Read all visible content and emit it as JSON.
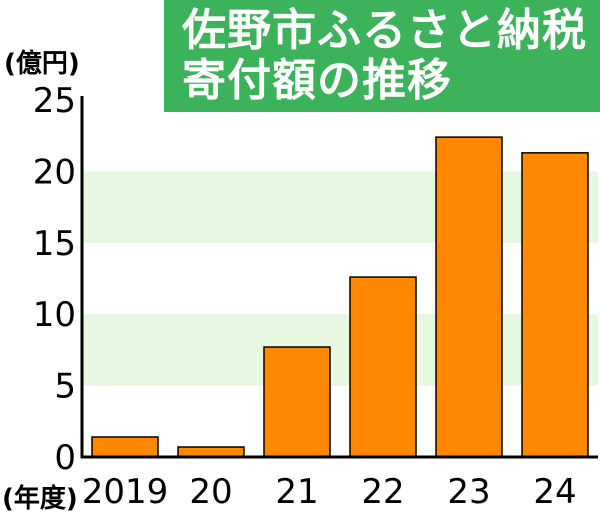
{
  "chart_data": {
    "type": "bar",
    "title_lines": [
      "佐野市ふるさと納税",
      "寄付額の推移"
    ],
    "ylabel": "(億円)",
    "xlabel": "(年度)",
    "categories": [
      "2019",
      "20",
      "21",
      "22",
      "23",
      "24"
    ],
    "values": [
      1.4,
      0.7,
      7.7,
      12.6,
      22.4,
      21.3
    ],
    "ylim": [
      0,
      25
    ],
    "yticks": [
      0,
      5,
      10,
      15,
      20,
      25
    ],
    "grid": true,
    "colors": {
      "bar": "#ff8800",
      "bar_edge": "#000000",
      "band": "#e6f8e0",
      "title_bg": "#3cb25a",
      "title_text": "#ffffff",
      "text": "#000000"
    }
  }
}
